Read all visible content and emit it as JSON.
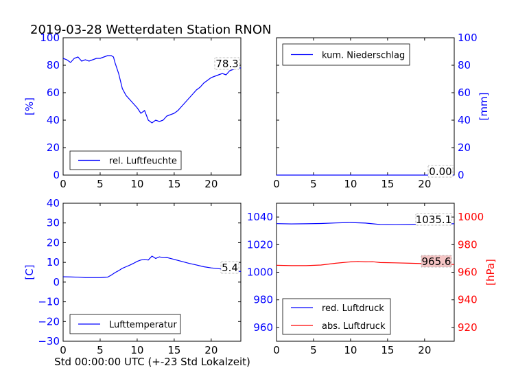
{
  "figure": {
    "title": "2019-03-28 Wetterdaten Station RNON",
    "xlabel": "Std 00:00:00 UTC (+-23 Std Lokalzeit)"
  },
  "colors": {
    "blue": "#0000ff",
    "red": "#ff0000",
    "red_box_fill": "#f4c4c4"
  },
  "chart_data": [
    {
      "id": "humidity",
      "type": "line",
      "xlim": [
        0,
        24
      ],
      "ylim": [
        0,
        100
      ],
      "xticks": [
        0,
        5,
        10,
        15,
        20
      ],
      "yticks": [
        0,
        20,
        40,
        60,
        80,
        100
      ],
      "ylabel": "[%]",
      "legend": "bottom-center",
      "series": [
        {
          "name": "rel. Luftfeuchte",
          "color": "#0000ff",
          "x": [
            0,
            0.5,
            1,
            1.5,
            2,
            2.5,
            3,
            3.5,
            4,
            4.5,
            5,
            5.5,
            6,
            6.5,
            6.8,
            7,
            7.5,
            8,
            8.5,
            9,
            9.5,
            10,
            10.5,
            11,
            11.5,
            12,
            12.5,
            13,
            13.5,
            14,
            14.5,
            15,
            15.5,
            16,
            16.5,
            17,
            17.5,
            18,
            18.5,
            19,
            19.5,
            20,
            20.5,
            21,
            21.5,
            22,
            22.5,
            23,
            23.5,
            24
          ],
          "y": [
            85,
            84,
            82,
            85,
            86,
            83,
            84,
            83,
            84,
            85,
            85,
            86,
            87,
            87,
            86,
            82,
            74,
            63,
            58,
            55,
            52,
            49,
            45,
            47,
            40,
            38,
            40,
            39,
            40,
            43,
            44,
            45,
            47,
            50,
            53,
            56,
            59,
            62,
            64,
            67,
            69,
            71,
            72,
            73,
            74,
            73,
            76,
            77,
            78,
            78
          ]
        }
      ],
      "annotation": {
        "text": "78.3",
        "x": 24,
        "y": 78.3
      }
    },
    {
      "id": "precipitation",
      "type": "line",
      "xlim": [
        0,
        24
      ],
      "ylim": [
        0,
        100
      ],
      "xticks": [
        0,
        5,
        10,
        15,
        20
      ],
      "yticks": [
        0,
        20,
        40,
        60,
        80,
        100
      ],
      "ylabel": "[mm]",
      "legend": "top-left",
      "series": [
        {
          "name": "kum. Niederschlag",
          "color": "#0000ff",
          "x": [
            0,
            24
          ],
          "y": [
            0,
            0
          ]
        }
      ],
      "annotation": {
        "text": "0.00",
        "x": 24,
        "y": 0
      }
    },
    {
      "id": "temperature",
      "type": "line",
      "xlim": [
        0,
        24
      ],
      "ylim": [
        -30,
        40
      ],
      "xticks": [
        0,
        5,
        10,
        15,
        20
      ],
      "yticks": [
        -30,
        -20,
        -10,
        0,
        10,
        20,
        30,
        40
      ],
      "ylabel": "[C]",
      "legend": "bottom-center",
      "series": [
        {
          "name": "Lufttemperatur",
          "color": "#0000ff",
          "x": [
            0,
            1,
            2,
            3,
            4,
            5,
            5.5,
            6,
            6.5,
            7,
            7.5,
            8,
            8.5,
            9,
            9.5,
            10,
            10.5,
            11,
            11.5,
            12,
            12.5,
            13,
            13.5,
            14,
            14.5,
            15,
            16,
            17,
            18,
            19,
            20,
            21,
            22,
            23,
            24
          ],
          "y": [
            2.7,
            2.6,
            2.5,
            2.3,
            2.3,
            2.3,
            2.4,
            2.5,
            3.5,
            4.8,
            5.8,
            7.0,
            7.8,
            8.6,
            9.5,
            10.5,
            11.2,
            11.5,
            11.2,
            13.2,
            12.0,
            12.8,
            12.4,
            12.5,
            12.0,
            11.5,
            10.5,
            9.5,
            8.7,
            7.8,
            7.2,
            6.8,
            6.3,
            5.6,
            5.4
          ]
        }
      ],
      "annotation": {
        "text": "5.4",
        "x": 24,
        "y": 5.4
      }
    },
    {
      "id": "pressure",
      "type": "line",
      "xlim": [
        0,
        24
      ],
      "ylim": [
        950,
        1050
      ],
      "xticks": [
        0,
        5,
        10,
        15,
        20
      ],
      "yticks": [
        960,
        980,
        1000,
        1020,
        1040
      ],
      "ylim_right": [
        910,
        1010
      ],
      "yticks_right": [
        920,
        940,
        960,
        980,
        1000
      ],
      "ylabel_right": "[hPa]",
      "legend": "bottom-center",
      "series": [
        {
          "name": "red. Luftdruck",
          "color": "#0000ff",
          "axis": "left",
          "x": [
            0,
            2,
            4,
            6,
            8,
            10,
            12,
            14,
            16,
            18,
            20,
            22,
            24
          ],
          "y": [
            1035.2,
            1035.0,
            1035.1,
            1035.3,
            1035.7,
            1036.0,
            1035.6,
            1034.6,
            1034.5,
            1034.6,
            1034.9,
            1035.0,
            1035.1
          ]
        },
        {
          "name": "abs. Luftdruck",
          "color": "#ff0000",
          "axis": "right",
          "x": [
            0,
            2,
            4,
            6,
            8,
            10,
            11,
            12,
            13,
            14,
            16,
            18,
            20,
            22,
            24
          ],
          "y": [
            965.0,
            964.8,
            964.8,
            965.2,
            966.5,
            967.5,
            967.8,
            967.5,
            967.6,
            967.0,
            966.8,
            966.5,
            966.2,
            966.0,
            965.6
          ]
        }
      ],
      "annotations": [
        {
          "text": "1035.1",
          "x": 24,
          "y": 1035.1,
          "axis": "left"
        },
        {
          "text": "965.6",
          "x": 24,
          "y": 965.6,
          "axis": "right"
        }
      ]
    }
  ]
}
